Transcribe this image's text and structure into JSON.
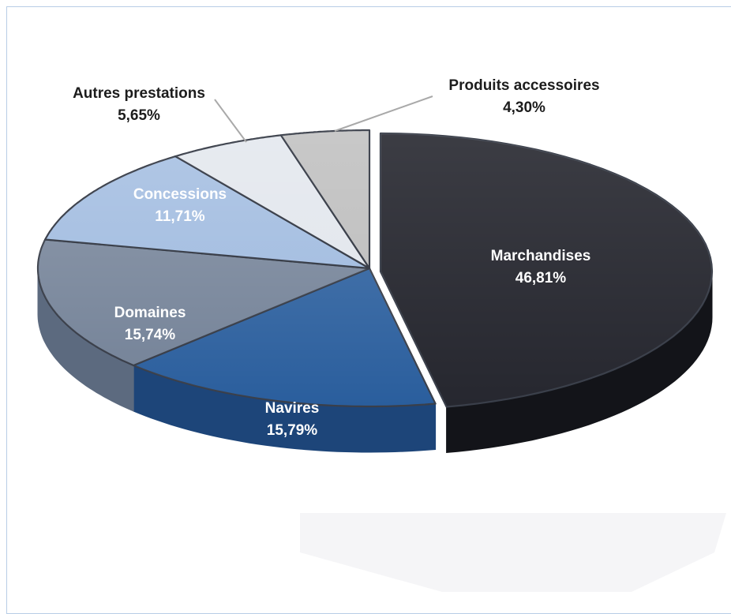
{
  "chart_data": {
    "type": "pie",
    "style": "3d-exploded",
    "title": "",
    "slices": [
      {
        "name": "Marchandises",
        "value": 46.81,
        "value_label": "46,81%",
        "color": "#26272f",
        "side_color": "#131419",
        "label_color": "#ffffff"
      },
      {
        "name": "Navires",
        "value": 15.79,
        "value_label": "15,79%",
        "color": "#2a5e9d",
        "side_color": "#1d4579",
        "label_color": "#ffffff"
      },
      {
        "name": "Domaines",
        "value": 15.74,
        "value_label": "15,74%",
        "color": "#77859a",
        "side_color": "#5c6a7f",
        "label_color": "#ffffff"
      },
      {
        "name": "Concessions",
        "value": 11.71,
        "value_label": "11,71%",
        "color": "#a7c0e2",
        "side_color": "#8aa5ca",
        "label_color": "#ffffff"
      },
      {
        "name": "Autres prestations",
        "value": 5.65,
        "value_label": "5,65%",
        "color": "#e4e8ee",
        "side_color": "#c9ced6",
        "label_color": "#1c1c1c"
      },
      {
        "name": "Produits accessoires",
        "value": 4.3,
        "value_label": "4,30%",
        "color": "#c2c2c2",
        "side_color": "#a4a4a4",
        "label_color": "#1c1c1c"
      }
    ],
    "legend": "none",
    "labels": "on-slices"
  }
}
